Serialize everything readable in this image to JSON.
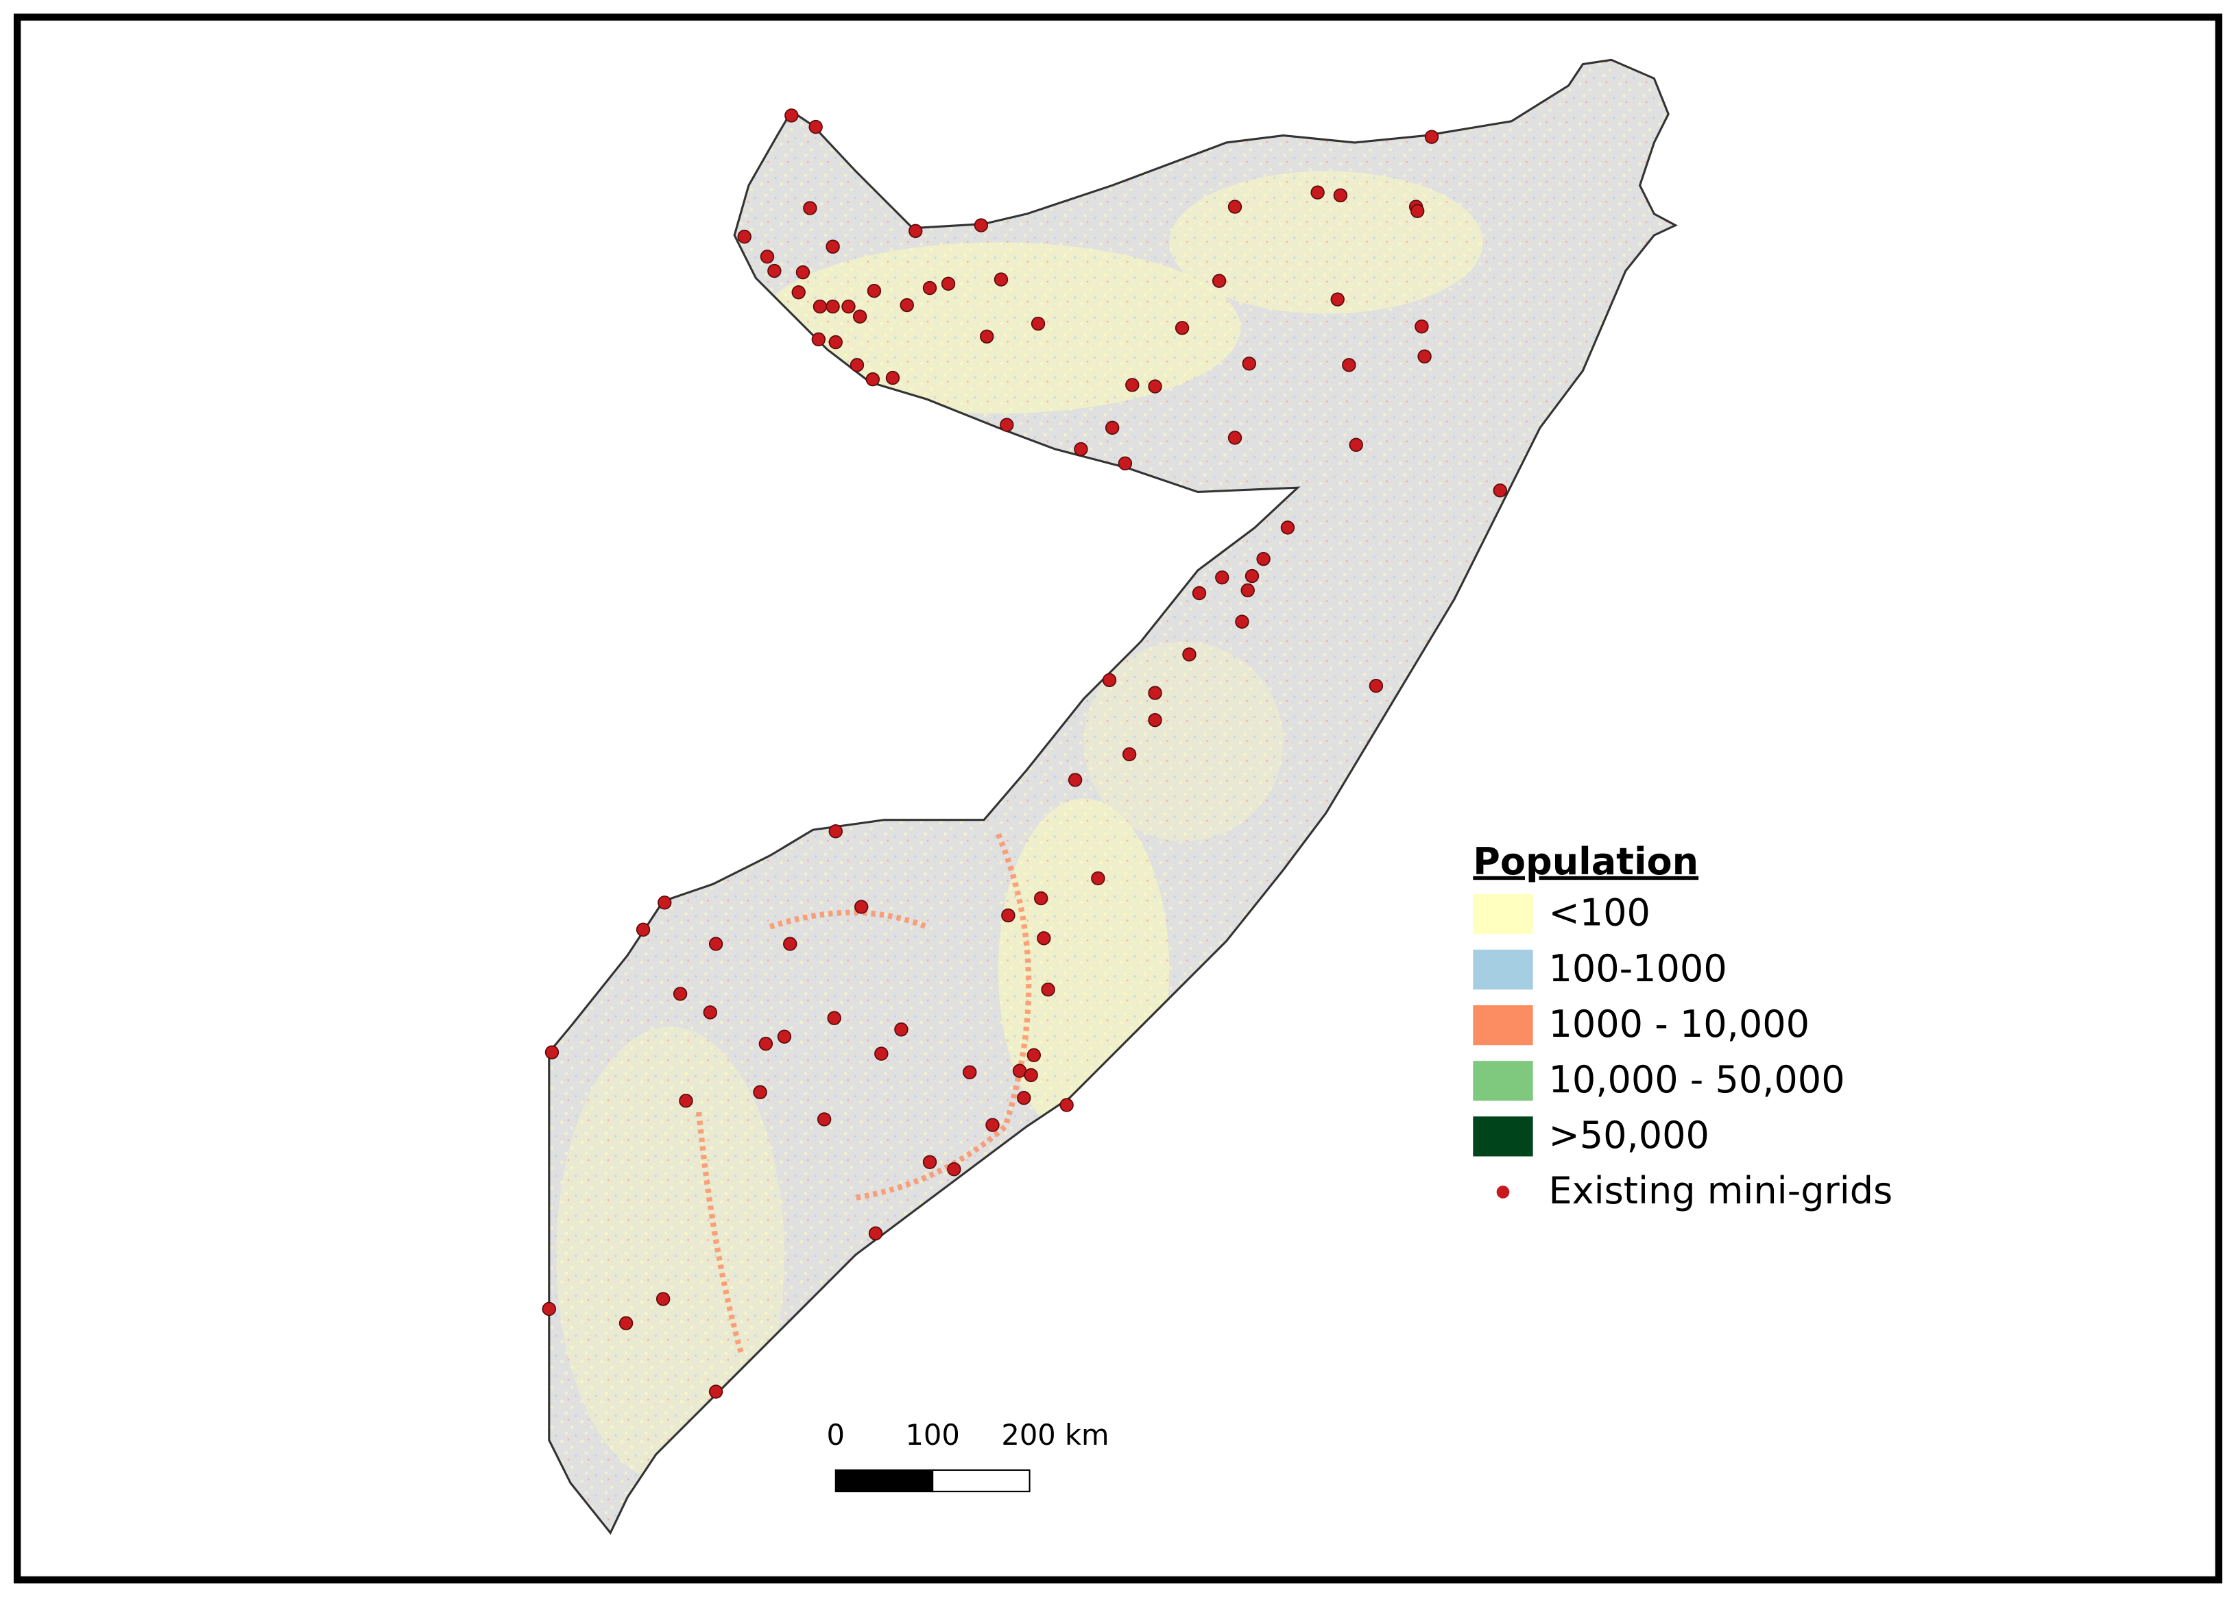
{
  "legend": {
    "title": "Population",
    "items": [
      {
        "label": "<100",
        "color": "#ffffc0"
      },
      {
        "label": "100-1000",
        "color": "#a6cee3"
      },
      {
        "label": "1000 - 10,000",
        "color": "#fc8d62"
      },
      {
        "label": "10,000 - 50,000",
        "color": "#7fc97f"
      },
      {
        "label": ">50,000",
        "color": "#00441b"
      }
    ],
    "point": {
      "label": "Existing mini-grids",
      "color": "#c8191e"
    }
  },
  "scale_bar": {
    "labels": [
      "0",
      "100",
      "200 km"
    ]
  }
}
